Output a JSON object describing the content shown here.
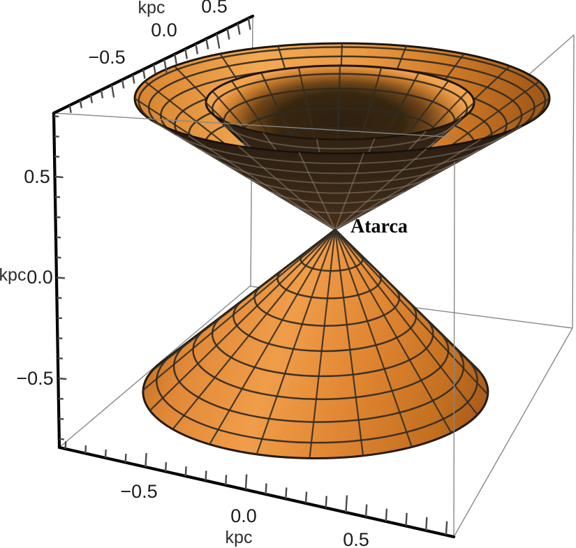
{
  "figure": {
    "annotation": "Atarca",
    "axes": {
      "top": {
        "title": "kpc",
        "tick_labels": [
          "−0.5",
          "0.0",
          "0.5"
        ]
      },
      "left": {
        "title": "kpc",
        "tick_labels": [
          "0.5",
          "0.0",
          "−0.5"
        ]
      },
      "bottom": {
        "title": "kpc",
        "tick_labels": [
          "−0.5",
          "0.0",
          "0.5"
        ]
      }
    },
    "colors": {
      "surface_lit": "#E58B39",
      "surface_highlight": "#F3A651",
      "surface_shadow_dark": "#31220F",
      "surface_shadow_mid": "#46311C",
      "grid_line": "#2F2A22",
      "grid_line_on_shadow": "#8D8579",
      "box_edge": "#878787",
      "axis_line": "#000000",
      "tick_mark": "#4A4A4A",
      "label_text": "#1B1B1B",
      "background": "#FFFFFF"
    }
  },
  "chart_data": {
    "type": "surface-3d",
    "description": "3D perspective plot (light-cone style) of three cone surfaces meeting at a single apex inside a wireframe axes box: one downward-opening cone below and two nested upward-opening cones above. Apex annotated 'Atarca'. Surfaces are orange with dark mesh grid; undersides/shadow sides are dark brown.",
    "units": "kpc",
    "axes": {
      "x": {
        "label": "kpc",
        "ticks": [
          -0.5,
          0.0,
          0.5
        ],
        "range_estimate": [
          -0.9,
          0.9
        ]
      },
      "y": {
        "label": "kpc",
        "ticks": [
          -0.5,
          0.0,
          0.5
        ],
        "range_estimate": [
          -0.9,
          0.9
        ]
      },
      "z": {
        "label": "kpc",
        "ticks": [
          -0.5,
          0.0,
          0.5
        ],
        "range_estimate": [
          -0.9,
          0.9
        ]
      }
    },
    "surfaces": [
      {
        "name": "lower-cone",
        "apex": [
          0,
          0,
          0
        ],
        "opens": "-z",
        "estimated_half_angle_deg": 45
      },
      {
        "name": "upper-inner-cone",
        "apex": [
          0,
          0,
          0
        ],
        "opens": "+z",
        "estimated_half_angle_deg": 34
      },
      {
        "name": "upper-outer-cone",
        "apex": [
          0,
          0,
          0
        ],
        "opens": "+z",
        "estimated_half_angle_deg": 45
      }
    ],
    "annotations": [
      {
        "text": "Atarca",
        "at": "cone apex (origin)"
      }
    ],
    "legend": null,
    "grid": "mesh lines on surfaces; wireframe bounding box"
  }
}
